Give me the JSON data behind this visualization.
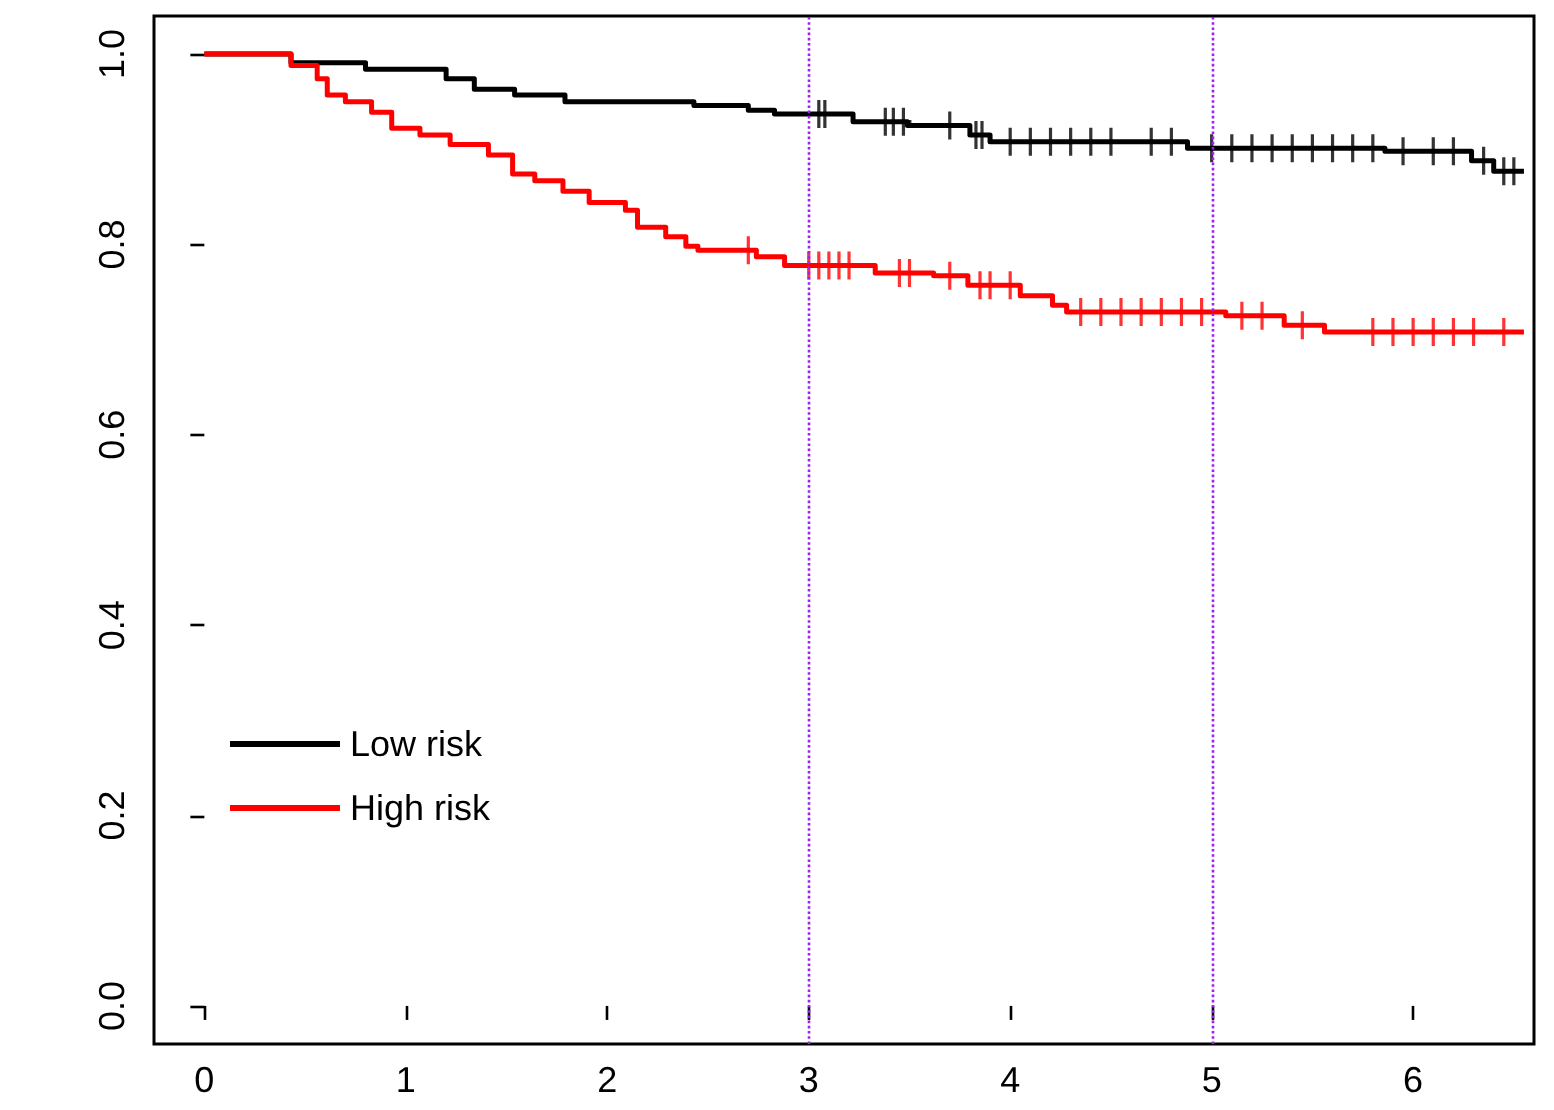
{
  "chart_data": {
    "type": "step",
    "xlim": [
      -0.25,
      6.6
    ],
    "ylim": [
      -0.04,
      1.04
    ],
    "xticks": [
      0,
      1,
      2,
      3,
      4,
      5,
      6
    ],
    "yticks": [
      {
        "value": 0,
        "label": "0.0"
      },
      {
        "value": 0.2,
        "label": "0.2"
      },
      {
        "value": 0.4,
        "label": "0.4"
      },
      {
        "value": 0.6,
        "label": "0.6"
      },
      {
        "value": 0.8,
        "label": "0.8"
      },
      {
        "value": 1,
        "label": "1.0"
      }
    ],
    "grid": false,
    "legend": "bottom left",
    "line_style": "solid",
    "marker": "none",
    "ref_lines": [
      {
        "axis": "x",
        "value": 3,
        "color": "#a020f0",
        "line_style": "dotted"
      },
      {
        "axis": "x",
        "value": 5,
        "color": "#a020f0",
        "line_style": "dotted"
      }
    ],
    "series": [
      {
        "name": "Low risk",
        "color": "#000000",
        "x": [
          0,
          0.43,
          0.8,
          1.2,
          1.34,
          1.54,
          1.79,
          2.43,
          2.7,
          2.83,
          3.22,
          3.49,
          3.8,
          3.9,
          4.88,
          5.86,
          6.29,
          6.4,
          6.55
        ],
        "values": [
          1.0,
          0.991,
          0.984,
          0.974,
          0.963,
          0.957,
          0.95,
          0.946,
          0.941,
          0.937,
          0.929,
          0.925,
          0.915,
          0.908,
          0.901,
          0.898,
          0.888,
          0.877,
          0.877
        ]
      },
      {
        "name": "High risk",
        "color": "#ff0000",
        "x": [
          0,
          0.43,
          0.56,
          0.61,
          0.7,
          0.83,
          0.93,
          1.07,
          1.22,
          1.41,
          1.53,
          1.64,
          1.78,
          1.91,
          2.09,
          2.15,
          2.29,
          2.39,
          2.45,
          2.74,
          2.88,
          3.33,
          3.62,
          3.79,
          4.05,
          4.21,
          4.28,
          5.07,
          5.36,
          5.56,
          6.55
        ],
        "values": [
          1.0,
          0.988,
          0.974,
          0.957,
          0.95,
          0.939,
          0.922,
          0.915,
          0.905,
          0.894,
          0.874,
          0.867,
          0.856,
          0.844,
          0.836,
          0.818,
          0.808,
          0.798,
          0.794,
          0.787,
          0.778,
          0.77,
          0.767,
          0.757,
          0.746,
          0.736,
          0.729,
          0.725,
          0.715,
          0.708,
          0.708
        ]
      },
      {
        "type": "scatter",
        "marker": "cross",
        "color": "#000000",
        "x": [
          3.05,
          3.08,
          3.38,
          3.42,
          3.47,
          3.7,
          3.83,
          3.86,
          4.0,
          4.1,
          4.2,
          4.3,
          4.4,
          4.5,
          4.7,
          4.8,
          5.0,
          5.1,
          5.2,
          5.3,
          5.4,
          5.5,
          5.6,
          5.7,
          5.8,
          5.95,
          6.1,
          6.2,
          6.35,
          6.45,
          6.5
        ],
        "values": [
          0.937,
          0.937,
          0.929,
          0.929,
          0.929,
          0.925,
          0.915,
          0.915,
          0.908,
          0.908,
          0.908,
          0.908,
          0.908,
          0.908,
          0.908,
          0.908,
          0.901,
          0.901,
          0.901,
          0.901,
          0.901,
          0.901,
          0.901,
          0.901,
          0.901,
          0.898,
          0.898,
          0.898,
          0.888,
          0.877,
          0.877
        ]
      },
      {
        "type": "scatter",
        "marker": "cross",
        "color": "#ff0000",
        "x": [
          2.7,
          3.0,
          3.05,
          3.1,
          3.15,
          3.2,
          3.45,
          3.5,
          3.7,
          3.85,
          3.9,
          4.0,
          4.35,
          4.45,
          4.55,
          4.65,
          4.75,
          4.85,
          4.95,
          5.15,
          5.25,
          5.45,
          5.8,
          5.9,
          6.0,
          6.1,
          6.2,
          6.3,
          6.45
        ],
        "values": [
          0.794,
          0.778,
          0.778,
          0.778,
          0.778,
          0.778,
          0.77,
          0.77,
          0.767,
          0.757,
          0.757,
          0.757,
          0.729,
          0.729,
          0.729,
          0.729,
          0.729,
          0.729,
          0.729,
          0.725,
          0.725,
          0.715,
          0.708,
          0.708,
          0.708,
          0.708,
          0.708,
          0.708,
          0.708
        ]
      }
    ]
  }
}
